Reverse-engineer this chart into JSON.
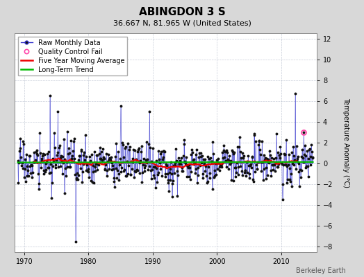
{
  "title": "ABINGDON 3 S",
  "subtitle": "36.667 N, 81.965 W (United States)",
  "ylabel": "Temperature Anomaly (°C)",
  "watermark": "Berkeley Earth",
  "ylim": [
    -8.5,
    12.5
  ],
  "yticks": [
    -8,
    -6,
    -4,
    -2,
    0,
    2,
    4,
    6,
    8,
    10,
    12
  ],
  "xlim": [
    1968.5,
    2015.5
  ],
  "xticks": [
    1970,
    1980,
    1990,
    2000,
    2010
  ],
  "year_start": 1969,
  "year_end": 2014,
  "n_months": 552,
  "bg_color": "#d8d8d8",
  "plot_bg_color": "#ffffff",
  "grid_color": "#b0b8c8",
  "raw_line_color": "#3333cc",
  "raw_dot_color": "#111111",
  "moving_avg_color": "#ee0000",
  "trend_color": "#00bb00",
  "qc_fail_color": "#ff44aa",
  "title_fontsize": 11,
  "subtitle_fontsize": 8,
  "tick_fontsize": 7,
  "ylabel_fontsize": 7,
  "legend_fontsize": 7,
  "watermark_fontsize": 7,
  "seed": 17
}
